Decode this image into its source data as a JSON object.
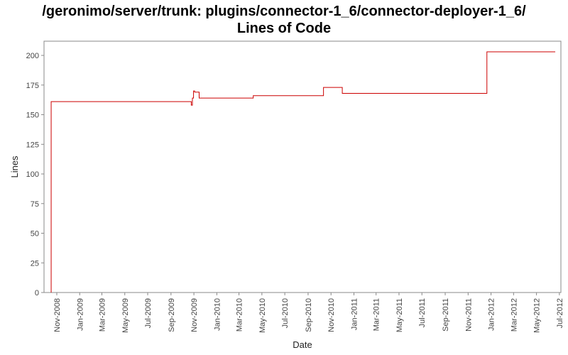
{
  "chart_data": {
    "type": "line",
    "title": "/geronimo/server/trunk: plugins/connector-1_6/connector-deployer-1_6/",
    "subtitle": "Lines of Code",
    "xlabel": "Date",
    "ylabel": "Lines",
    "ylim": [
      0,
      212
    ],
    "y_ticks": [
      0,
      25,
      50,
      75,
      100,
      125,
      150,
      175,
      200
    ],
    "xlim": [
      "2008-09-28",
      "2012-07-05"
    ],
    "x_ticks": [
      {
        "date": "2008-11-01",
        "label": "Nov-2008"
      },
      {
        "date": "2009-01-01",
        "label": "Jan-2009"
      },
      {
        "date": "2009-03-01",
        "label": "Mar-2009"
      },
      {
        "date": "2009-05-01",
        "label": "May-2009"
      },
      {
        "date": "2009-07-01",
        "label": "Jul-2009"
      },
      {
        "date": "2009-09-01",
        "label": "Sep-2009"
      },
      {
        "date": "2009-11-01",
        "label": "Nov-2009"
      },
      {
        "date": "2010-01-01",
        "label": "Jan-2010"
      },
      {
        "date": "2010-03-01",
        "label": "Mar-2010"
      },
      {
        "date": "2010-05-01",
        "label": "May-2010"
      },
      {
        "date": "2010-07-01",
        "label": "Jul-2010"
      },
      {
        "date": "2010-09-01",
        "label": "Sep-2010"
      },
      {
        "date": "2010-11-01",
        "label": "Nov-2010"
      },
      {
        "date": "2011-01-01",
        "label": "Jan-2011"
      },
      {
        "date": "2011-03-01",
        "label": "Mar-2011"
      },
      {
        "date": "2011-05-01",
        "label": "May-2011"
      },
      {
        "date": "2011-07-01",
        "label": "Jul-2011"
      },
      {
        "date": "2011-09-01",
        "label": "Sep-2011"
      },
      {
        "date": "2011-11-01",
        "label": "Nov-2011"
      },
      {
        "date": "2012-01-01",
        "label": "Jan-2012"
      },
      {
        "date": "2012-03-01",
        "label": "Mar-2012"
      },
      {
        "date": "2012-05-01",
        "label": "May-2012"
      },
      {
        "date": "2012-07-01",
        "label": "Jul-2012"
      }
    ],
    "grid": false,
    "legend": "none",
    "line_color": "#cc0000",
    "series": [
      {
        "step": true,
        "points": [
          {
            "x": "2008-10-17",
            "y": 0
          },
          {
            "x": "2008-10-17",
            "y": 161
          },
          {
            "x": "2009-10-25",
            "y": 158
          },
          {
            "x": "2009-10-28",
            "y": 164
          },
          {
            "x": "2009-10-31",
            "y": 170
          },
          {
            "x": "2009-11-03",
            "y": 169
          },
          {
            "x": "2009-11-15",
            "y": 164
          },
          {
            "x": "2010-04-08",
            "y": 166
          },
          {
            "x": "2010-10-12",
            "y": 173
          },
          {
            "x": "2010-12-01",
            "y": 168
          },
          {
            "x": "2011-12-21",
            "y": 203
          },
          {
            "x": "2012-06-20",
            "y": 203
          }
        ]
      }
    ]
  }
}
